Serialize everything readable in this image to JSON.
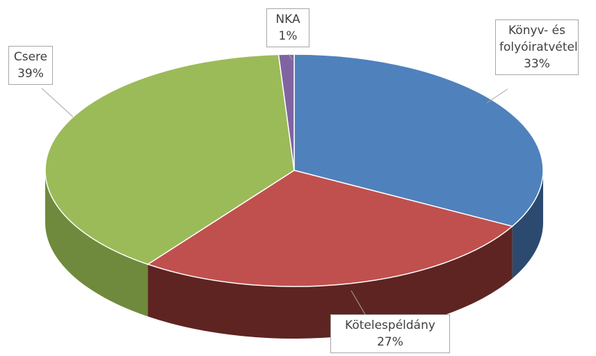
{
  "chart_data": {
    "type": "pie3d",
    "categories": [
      "Könyv- és folyóiratvétel",
      "Kötelespéldány",
      "Csere",
      "NKA"
    ],
    "values": [
      33,
      27,
      39,
      1
    ],
    "value_labels": [
      "33%",
      "27%",
      "39%",
      "1%"
    ],
    "colors": [
      "#4f81bd",
      "#c0504d",
      "#9bbb59",
      "#8064a2"
    ],
    "side_colors": [
      "#2c4a70",
      "#5e2422",
      "#6f8a3c",
      "#56407a"
    ]
  }
}
